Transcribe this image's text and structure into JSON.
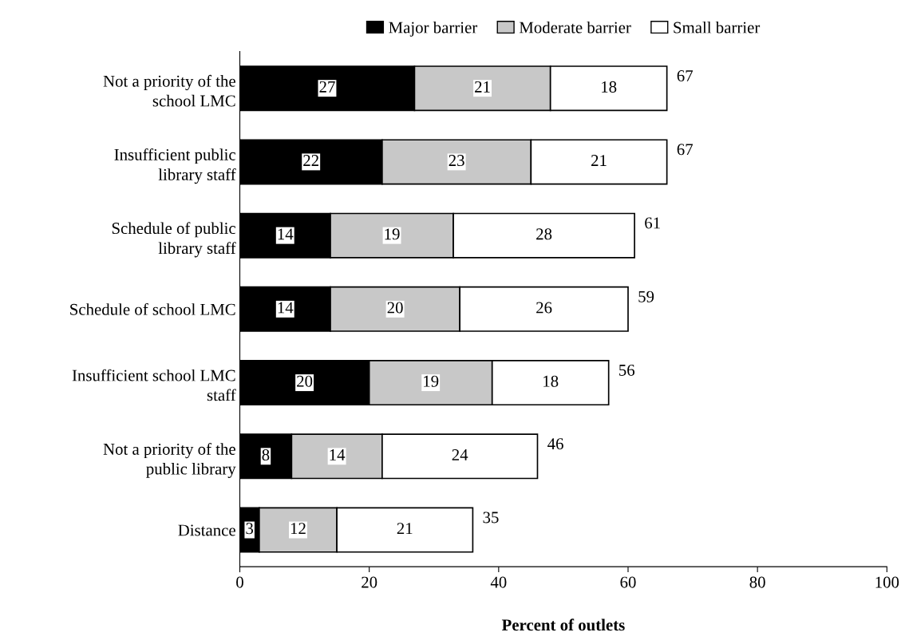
{
  "chart_data": {
    "type": "bar",
    "orientation": "horizontal",
    "stacked": true,
    "xlabel": "Percent of outlets",
    "categories": [
      "Not a priority of the school LMC",
      "Insufficient public library staff",
      "Schedule of public library staff",
      "Schedule of school LMC",
      "Insufficient school LMC staff",
      "Not a priority of the public library",
      "Distance"
    ],
    "series": [
      {
        "name": "Major barrier",
        "color": "#000000",
        "values": [
          27,
          22,
          14,
          14,
          20,
          8,
          3
        ]
      },
      {
        "name": "Moderate barrier",
        "color": "#c8c8c8",
        "values": [
          21,
          23,
          19,
          20,
          19,
          14,
          12
        ]
      },
      {
        "name": "Small barrier",
        "color": "#ffffff",
        "values": [
          18,
          21,
          28,
          26,
          18,
          24,
          21
        ]
      }
    ],
    "totals": [
      "67",
      "67",
      "61",
      "59",
      "56",
      "46",
      "35"
    ],
    "data_labels": true,
    "xlim": [
      0,
      100
    ],
    "xticks": [
      0,
      20,
      40,
      60,
      80,
      100
    ],
    "grid": false,
    "legend": "top"
  }
}
